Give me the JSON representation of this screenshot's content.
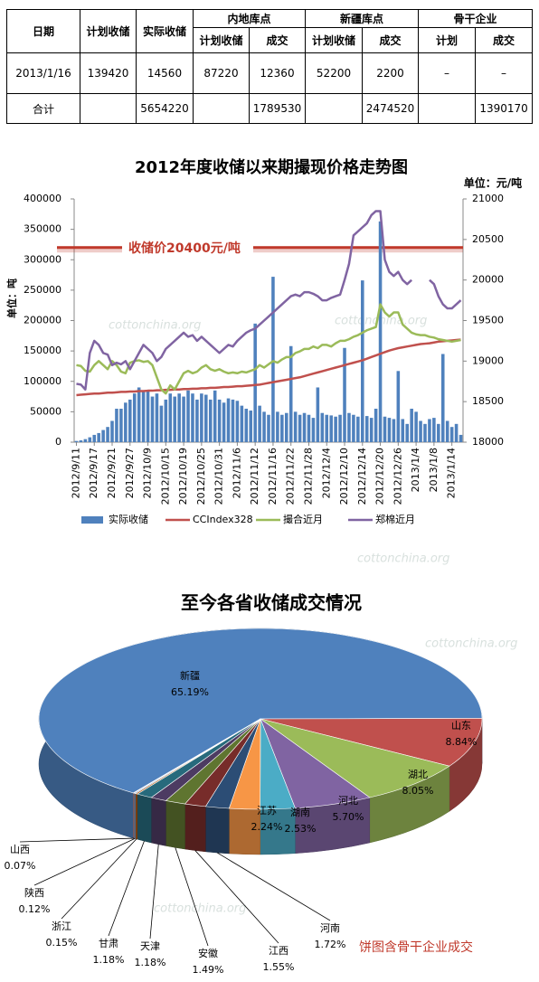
{
  "table": {
    "header": [
      [
        "日期",
        "计划收储",
        "实际收储",
        "内地库点",
        "新疆库点",
        "骨干企业"
      ],
      [
        "计划收储",
        "成交",
        "计划收储",
        "成交",
        "计划",
        "成交"
      ]
    ],
    "rows": [
      [
        "2013/1/16",
        139420,
        14560,
        87220,
        12360,
        52200,
        2200,
        "–",
        "–"
      ],
      [
        "合计",
        null,
        5654220,
        null,
        1789530,
        null,
        2474520,
        null,
        1390170
      ]
    ]
  },
  "watermark": "cottonchina.org",
  "chart_data": [
    {
      "type": "combo",
      "title": "2012年度收储以来期撮现价格走势图",
      "ylabel": "单位：吨",
      "y2label": "单位：元/吨",
      "categories": [
        "2012/9/11",
        null,
        null,
        null,
        "2012/9/17",
        null,
        null,
        null,
        "2012/9/21",
        null,
        null,
        null,
        "2012/9/27",
        null,
        null,
        null,
        "2012/10/9",
        null,
        null,
        null,
        "2012/10/15",
        null,
        null,
        null,
        "2012/10/19",
        null,
        null,
        null,
        "2012/10/25",
        null,
        null,
        null,
        "2012/10/31",
        null,
        null,
        null,
        "2012/11/6",
        null,
        null,
        null,
        "2012/11/12",
        null,
        null,
        null,
        "2012/11/16",
        null,
        null,
        null,
        "2012/11/22",
        null,
        null,
        null,
        "2012/11/28",
        null,
        null,
        null,
        "2012/12/4",
        null,
        null,
        null,
        "2012/12/10",
        null,
        null,
        null,
        "2012/12/14",
        null,
        null,
        null,
        "2012/12/20",
        null,
        null,
        null,
        "2012/12/26",
        null,
        null,
        null,
        "2013/1/4",
        null,
        null,
        null,
        "2013/1/8",
        null,
        null,
        null,
        "2013/1/14",
        null,
        null
      ],
      "series": [
        {
          "name": "实际收储",
          "type": "bar",
          "color": "#4f81bd",
          "values": [
            2000,
            3000,
            5000,
            8000,
            12000,
            15000,
            20000,
            25000,
            35000,
            55000,
            55000,
            65000,
            70000,
            80000,
            90000,
            85000,
            85000,
            75000,
            80000,
            60000,
            70000,
            80000,
            75000,
            80000,
            75000,
            85000,
            80000,
            70000,
            80000,
            78000,
            70000,
            85000,
            70000,
            65000,
            72000,
            70000,
            68000,
            60000,
            55000,
            52000,
            195000,
            60000,
            50000,
            45000,
            272000,
            50000,
            45000,
            48000,
            158000,
            50000,
            45000,
            48000,
            45000,
            40000,
            90000,
            48000,
            45000,
            44000,
            42000,
            45000,
            155000,
            48000,
            45000,
            42000,
            266000,
            43000,
            40000,
            55000,
            363000,
            42000,
            40000,
            38000,
            117000,
            38000,
            30000,
            55000,
            50000,
            35000,
            30000,
            38000,
            40000,
            30000,
            145000,
            35000,
            25000,
            30000,
            12000
          ]
        },
        {
          "name": "CCIndex328",
          "type": "line",
          "axis": "y2",
          "color": "#c0504d",
          "values": [
            18580,
            18585,
            18590,
            18595,
            18600,
            18600,
            18605,
            18610,
            18610,
            18615,
            18620,
            18620,
            18625,
            18625,
            18630,
            18630,
            18635,
            18635,
            18640,
            18640,
            18645,
            18645,
            18650,
            18650,
            18655,
            18655,
            18660,
            18660,
            18665,
            18665,
            18670,
            18670,
            18675,
            18680,
            18680,
            18685,
            18690,
            18690,
            18695,
            18700,
            18705,
            18710,
            18720,
            18730,
            18740,
            18750,
            18760,
            18770,
            18780,
            18790,
            18800,
            18815,
            18830,
            18845,
            18860,
            18875,
            18890,
            18905,
            18920,
            18935,
            18950,
            18965,
            18980,
            18995,
            19010,
            19030,
            19050,
            19070,
            19090,
            19110,
            19130,
            19145,
            19160,
            19170,
            19180,
            19190,
            19200,
            19210,
            19215,
            19220,
            19230,
            19240,
            19245,
            19250,
            19255,
            19260,
            19265
          ]
        },
        {
          "name": "撮合近月",
          "type": "line",
          "axis": "y2",
          "color": "#9bbb59",
          "values": [
            18950,
            18940,
            18880,
            18870,
            18950,
            19000,
            18950,
            18900,
            19000,
            18950,
            18870,
            18850,
            18980,
            19000,
            19010,
            18990,
            19000,
            18950,
            18800,
            18650,
            18600,
            18700,
            18650,
            18750,
            18850,
            18880,
            18850,
            18870,
            18920,
            18950,
            18900,
            18880,
            18900,
            18870,
            18850,
            18860,
            18850,
            18870,
            18860,
            18880,
            18900,
            18950,
            18920,
            18960,
            19000,
            18980,
            19020,
            19050,
            19050,
            19100,
            19120,
            19150,
            19150,
            19180,
            19160,
            19200,
            19200,
            19180,
            19220,
            19250,
            19250,
            19270,
            19300,
            19320,
            19350,
            19380,
            19400,
            19420,
            19700,
            19600,
            19550,
            19600,
            19600,
            19450,
            19400,
            19350,
            19330,
            19320,
            19320,
            19300,
            19290,
            19270,
            19260,
            19250,
            19240,
            19250,
            19260
          ]
        },
        {
          "name": "郑棉近月",
          "type": "line",
          "axis": "y2",
          "color": "#8064a2",
          "values": [
            18720,
            18710,
            18650,
            19100,
            19250,
            19200,
            19100,
            19080,
            18950,
            18980,
            18960,
            19000,
            18900,
            19000,
            19100,
            19200,
            19150,
            19100,
            19000,
            19050,
            19150,
            19200,
            19250,
            19300,
            19350,
            19300,
            19320,
            19250,
            19300,
            19250,
            19200,
            19150,
            19100,
            19150,
            19200,
            19180,
            19250,
            19300,
            19350,
            19380,
            19400,
            19450,
            19500,
            19550,
            19600,
            19650,
            19700,
            19750,
            19800,
            19820,
            19800,
            19850,
            19850,
            19830,
            19800,
            19750,
            19750,
            19780,
            19800,
            19820,
            20000,
            20200,
            20550,
            20600,
            20650,
            20700,
            20800,
            20850,
            20850,
            20250,
            20100,
            20050,
            20100,
            20000,
            19950,
            20000,
            null,
            null,
            null,
            20000,
            19950,
            19800,
            19700,
            19650,
            19650,
            19700,
            19750
          ]
        }
      ],
      "ylim": [
        0,
        400000
      ],
      "yticks": [
        0,
        50000,
        100000,
        150000,
        200000,
        250000,
        300000,
        350000,
        400000
      ],
      "y2lim": [
        18000,
        21000
      ],
      "y2ticks": [
        18000,
        18500,
        19000,
        19500,
        20000,
        20500,
        21000
      ],
      "grid": false,
      "legend": "bottom",
      "annotations": [
        {
          "text": "收储价20400元/吨",
          "value": 20400,
          "axis": "y2",
          "color": "#c0392b"
        }
      ]
    },
    {
      "type": "pie",
      "title": "至今各省收储成交情况",
      "categories": [
        "新疆",
        "山东",
        "湖北",
        "河北",
        "湖南",
        "江苏",
        "河南",
        "江西",
        "安徽",
        "天津",
        "甘肃",
        "浙江",
        "陕西",
        "山西"
      ],
      "values": [
        65.19,
        8.84,
        8.05,
        5.7,
        2.53,
        2.24,
        1.72,
        1.55,
        1.49,
        1.18,
        1.18,
        0.15,
        0.12,
        0.07
      ],
      "value_labels": [
        "65.19%",
        "8.84%",
        "8.05%",
        "5.70%",
        "2.53%",
        "2.24%",
        "1.72%",
        "1.55%",
        "1.49%",
        "1.18%",
        "1.18%",
        "0.15%",
        "0.12%",
        "0.07%"
      ],
      "colors": [
        "#4f81bd",
        "#c0504d",
        "#9bbb59",
        "#8064a2",
        "#4bacc6",
        "#f79646",
        "#2c4d75",
        "#772c2a",
        "#5f7530",
        "#4d3b62",
        "#276a7c",
        "#b65708",
        "#729aca",
        "#d19392"
      ],
      "annotation": "饼图含骨干企业成交",
      "annotation_color": "#c0392b",
      "style": "3d"
    }
  ]
}
